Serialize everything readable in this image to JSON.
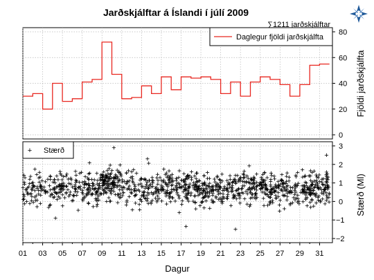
{
  "chart_data": {
    "type": "step-line and scatter",
    "title": "Jarðskjálftar á Íslandi í júlí 2009",
    "total_label": "∑1211 jarðskjálftar",
    "xlabel": "Dagur",
    "x_tick_labels": [
      "01",
      "03",
      "05",
      "07",
      "09",
      "11",
      "13",
      "15",
      "17",
      "19",
      "21",
      "23",
      "25",
      "27",
      "29",
      "31"
    ],
    "grid": true,
    "top_panel": {
      "ylabel": "Fjöldi jarðskjálfta",
      "ylim": [
        0,
        80
      ],
      "y_ticks": [
        0,
        20,
        40,
        60,
        80
      ],
      "legend": {
        "label": "Daglegur fjöldi jarðskjálfta",
        "placement": "top-right",
        "color": "#e8261f"
      },
      "days": [
        1,
        2,
        3,
        4,
        5,
        6,
        7,
        8,
        9,
        10,
        11,
        12,
        13,
        14,
        15,
        16,
        17,
        18,
        19,
        20,
        21,
        22,
        23,
        24,
        25,
        26,
        27,
        28,
        29,
        30,
        31
      ],
      "daily_count": [
        30,
        32,
        20,
        40,
        26,
        28,
        41,
        43,
        72,
        47,
        28,
        29,
        38,
        32,
        45,
        35,
        45,
        44,
        45,
        43,
        32,
        41,
        30,
        41,
        45,
        43,
        39,
        30,
        39,
        54,
        55
      ]
    },
    "bottom_panel": {
      "ylabel": "Stærð (Ml)",
      "ylim": [
        -2,
        3
      ],
      "y_ticks": [
        -2,
        -1,
        0,
        1,
        2,
        3
      ],
      "legend": {
        "label": "Stærð",
        "placement": "top-left",
        "marker": "+"
      },
      "point_count": 1211,
      "notable_points": [
        {
          "day": 10.2,
          "magnitude": 2.9
        },
        {
          "day": 13.6,
          "magnitude": 2.3
        },
        {
          "day": 17.5,
          "magnitude": -1.35
        },
        {
          "day": 22.5,
          "magnitude": -1.5
        },
        {
          "day": 4.3,
          "magnitude": -0.9
        },
        {
          "day": 31.7,
          "magnitude": 2.5
        }
      ]
    }
  },
  "logo": {
    "name": "imo-logo-icon",
    "color": "#1f5a9a"
  }
}
